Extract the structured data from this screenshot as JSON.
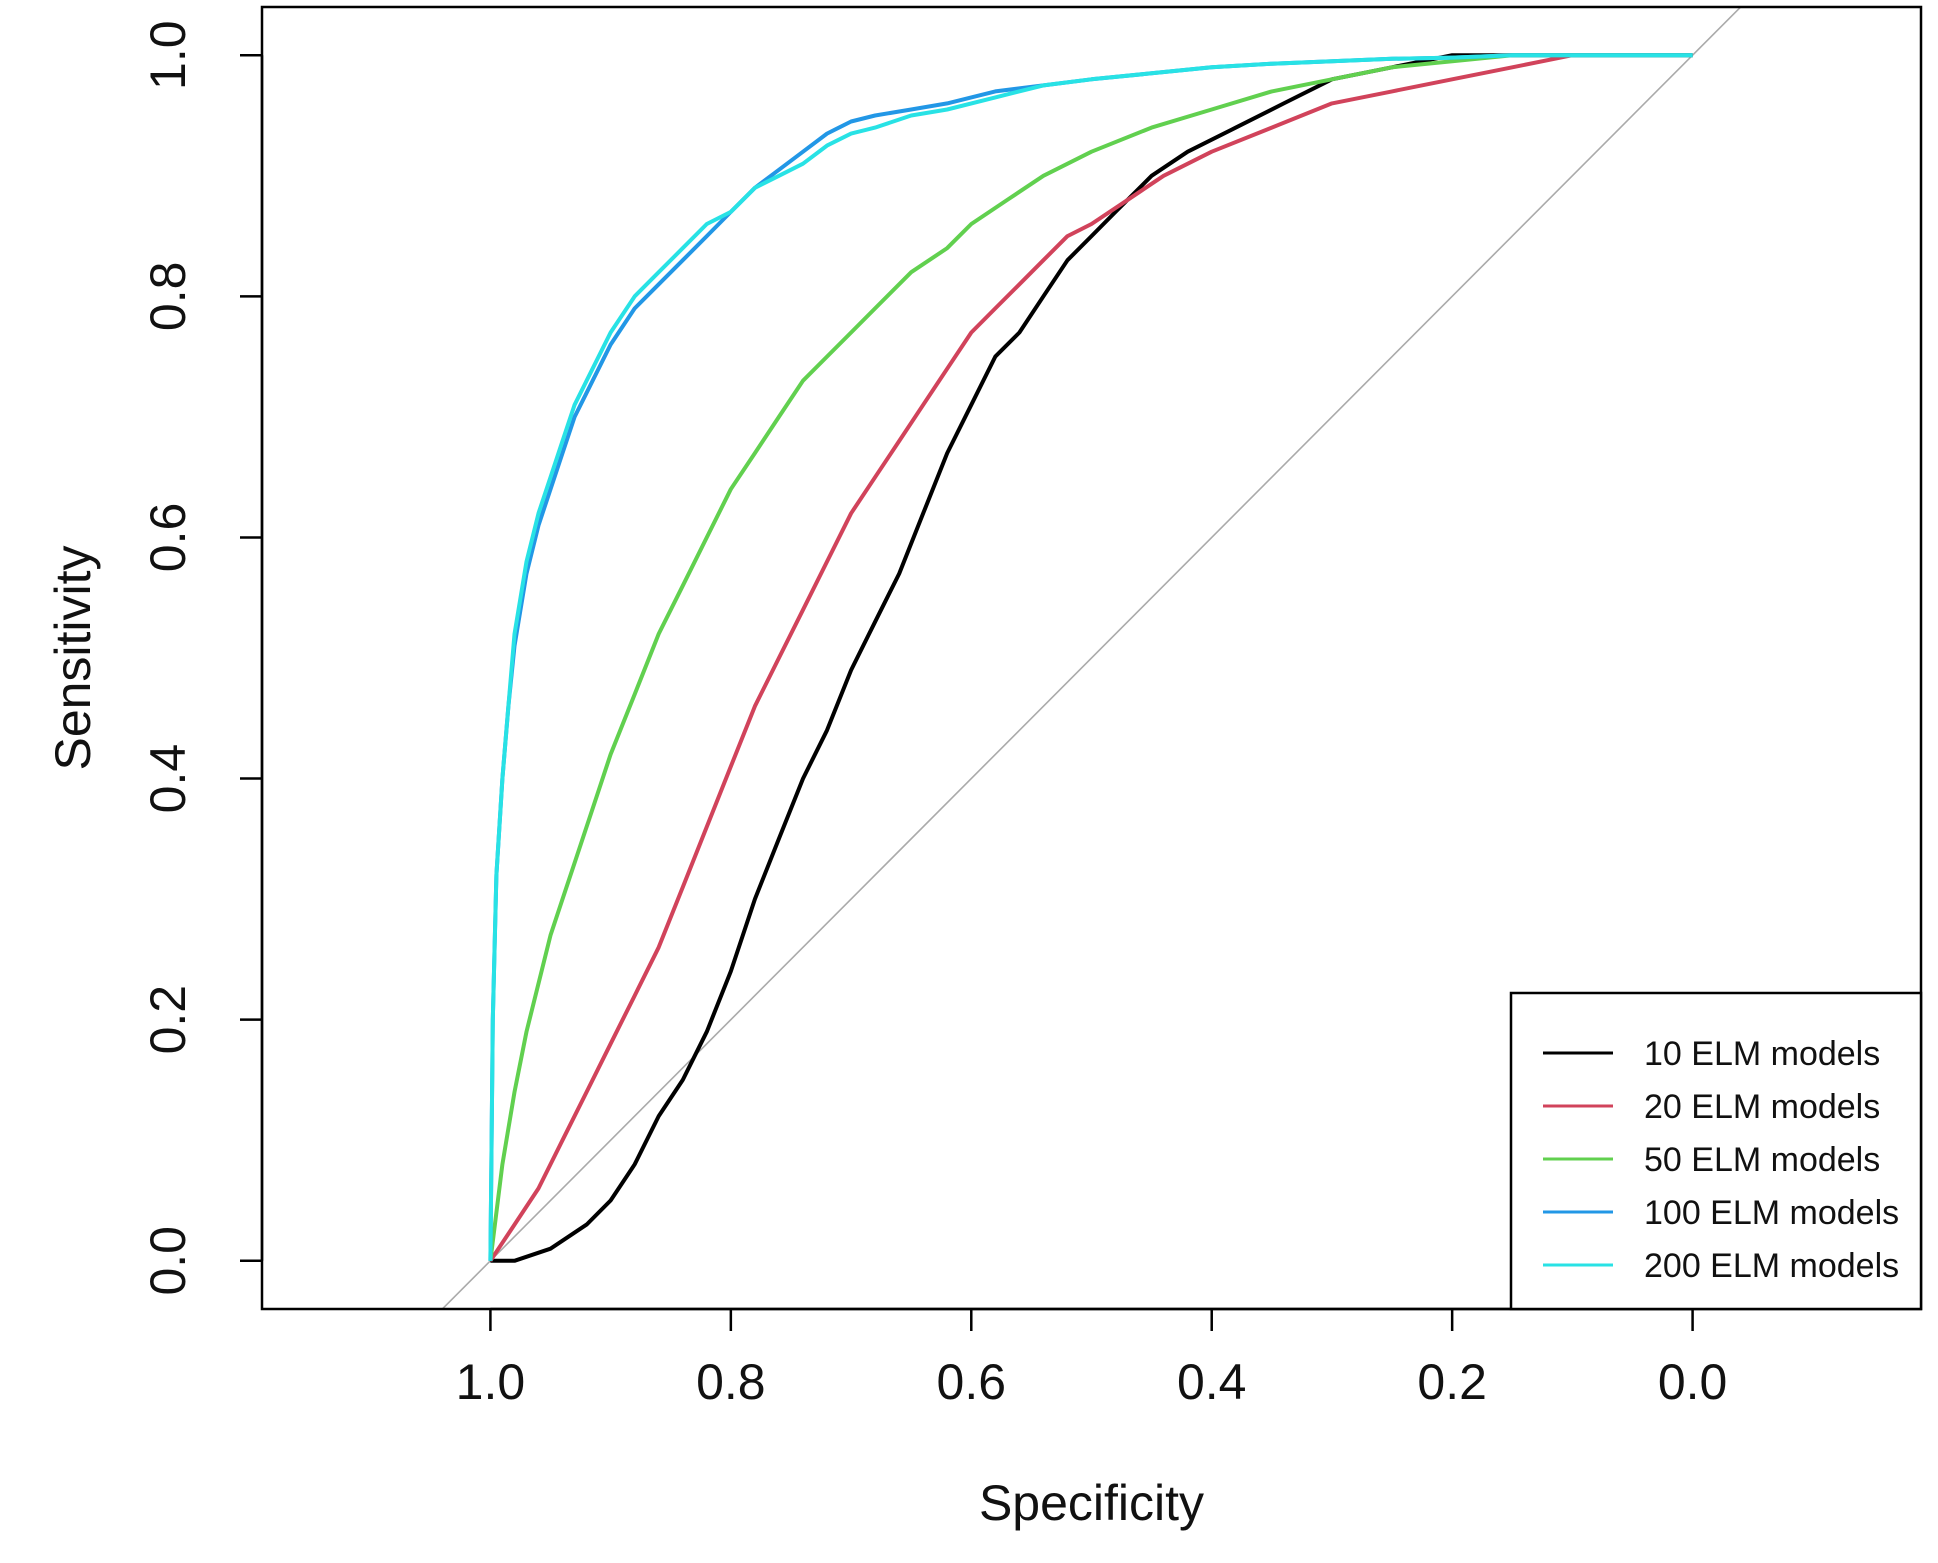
{
  "chart_data": {
    "type": "line",
    "title": "",
    "xlabel": "Specificity",
    "ylabel": "Sensitivity",
    "xlim": [
      1.19,
      -0.19
    ],
    "ylim": [
      -0.04,
      1.04
    ],
    "x_reversed": true,
    "x_ticks": [
      "1.0",
      "0.8",
      "0.6",
      "0.4",
      "0.2",
      "0.0"
    ],
    "y_ticks": [
      "0.0",
      "0.2",
      "0.4",
      "0.6",
      "0.8",
      "1.0"
    ],
    "grid": false,
    "legend_position": "bottom-right",
    "reference_line": {
      "from": [
        1.0,
        0.0
      ],
      "to": [
        0.0,
        1.0
      ],
      "color": "#aaaaaa"
    },
    "series": [
      {
        "name": "10 ELM models",
        "color": "#000000",
        "x": [
          1.0,
          0.98,
          0.95,
          0.92,
          0.9,
          0.88,
          0.86,
          0.84,
          0.82,
          0.8,
          0.78,
          0.76,
          0.74,
          0.72,
          0.7,
          0.68,
          0.66,
          0.64,
          0.62,
          0.6,
          0.58,
          0.56,
          0.54,
          0.52,
          0.5,
          0.48,
          0.45,
          0.42,
          0.38,
          0.34,
          0.3,
          0.25,
          0.2,
          0.15,
          0.1,
          0.05,
          0.0
        ],
        "y": [
          0.0,
          0.0,
          0.01,
          0.03,
          0.05,
          0.08,
          0.12,
          0.15,
          0.19,
          0.24,
          0.3,
          0.35,
          0.4,
          0.44,
          0.49,
          0.53,
          0.57,
          0.62,
          0.67,
          0.71,
          0.75,
          0.77,
          0.8,
          0.83,
          0.85,
          0.87,
          0.9,
          0.92,
          0.94,
          0.96,
          0.98,
          0.99,
          1.0,
          1.0,
          1.0,
          1.0,
          1.0
        ]
      },
      {
        "name": "20 ELM models",
        "color": "#d1435b",
        "x": [
          1.0,
          0.98,
          0.96,
          0.94,
          0.92,
          0.9,
          0.88,
          0.86,
          0.84,
          0.82,
          0.8,
          0.78,
          0.76,
          0.74,
          0.72,
          0.7,
          0.68,
          0.66,
          0.64,
          0.62,
          0.6,
          0.58,
          0.56,
          0.54,
          0.52,
          0.5,
          0.47,
          0.44,
          0.4,
          0.35,
          0.3,
          0.25,
          0.2,
          0.15,
          0.1,
          0.05,
          0.0
        ],
        "y": [
          0.0,
          0.03,
          0.06,
          0.1,
          0.14,
          0.18,
          0.22,
          0.26,
          0.31,
          0.36,
          0.41,
          0.46,
          0.5,
          0.54,
          0.58,
          0.62,
          0.65,
          0.68,
          0.71,
          0.74,
          0.77,
          0.79,
          0.81,
          0.83,
          0.85,
          0.86,
          0.88,
          0.9,
          0.92,
          0.94,
          0.96,
          0.97,
          0.98,
          0.99,
          1.0,
          1.0,
          1.0
        ]
      },
      {
        "name": "50 ELM models",
        "color": "#61d04f",
        "x": [
          1.0,
          0.99,
          0.98,
          0.97,
          0.96,
          0.95,
          0.94,
          0.93,
          0.92,
          0.91,
          0.9,
          0.88,
          0.86,
          0.84,
          0.82,
          0.8,
          0.78,
          0.76,
          0.74,
          0.72,
          0.7,
          0.68,
          0.65,
          0.62,
          0.6,
          0.57,
          0.54,
          0.5,
          0.45,
          0.4,
          0.35,
          0.3,
          0.25,
          0.2,
          0.15,
          0.1,
          0.05,
          0.0
        ],
        "y": [
          0.0,
          0.08,
          0.14,
          0.19,
          0.23,
          0.27,
          0.3,
          0.33,
          0.36,
          0.39,
          0.42,
          0.47,
          0.52,
          0.56,
          0.6,
          0.64,
          0.67,
          0.7,
          0.73,
          0.75,
          0.77,
          0.79,
          0.82,
          0.84,
          0.86,
          0.88,
          0.9,
          0.92,
          0.94,
          0.955,
          0.97,
          0.98,
          0.99,
          0.995,
          1.0,
          1.0,
          1.0,
          1.0
        ]
      },
      {
        "name": "100 ELM models",
        "color": "#2297e6",
        "x": [
          1.0,
          0.998,
          0.995,
          0.99,
          0.985,
          0.98,
          0.97,
          0.96,
          0.95,
          0.94,
          0.93,
          0.92,
          0.9,
          0.88,
          0.86,
          0.84,
          0.82,
          0.8,
          0.78,
          0.76,
          0.74,
          0.72,
          0.7,
          0.68,
          0.65,
          0.62,
          0.58,
          0.54,
          0.5,
          0.45,
          0.4,
          0.35,
          0.3,
          0.25,
          0.2,
          0.15,
          0.1,
          0.05,
          0.0
        ],
        "y": [
          0.0,
          0.2,
          0.32,
          0.4,
          0.46,
          0.51,
          0.57,
          0.61,
          0.64,
          0.67,
          0.7,
          0.72,
          0.76,
          0.79,
          0.81,
          0.83,
          0.85,
          0.87,
          0.89,
          0.905,
          0.92,
          0.935,
          0.945,
          0.95,
          0.955,
          0.96,
          0.97,
          0.975,
          0.98,
          0.985,
          0.99,
          0.993,
          0.995,
          0.997,
          0.998,
          1.0,
          1.0,
          1.0,
          1.0
        ]
      },
      {
        "name": "200 ELM models",
        "color": "#28e2e5",
        "x": [
          1.0,
          0.998,
          0.995,
          0.99,
          0.985,
          0.98,
          0.97,
          0.96,
          0.95,
          0.94,
          0.93,
          0.92,
          0.9,
          0.88,
          0.86,
          0.84,
          0.82,
          0.8,
          0.78,
          0.76,
          0.74,
          0.72,
          0.7,
          0.68,
          0.65,
          0.62,
          0.58,
          0.54,
          0.5,
          0.45,
          0.4,
          0.35,
          0.3,
          0.25,
          0.2,
          0.15,
          0.1,
          0.05,
          0.0
        ],
        "y": [
          0.0,
          0.2,
          0.32,
          0.4,
          0.46,
          0.52,
          0.58,
          0.62,
          0.65,
          0.68,
          0.71,
          0.73,
          0.77,
          0.8,
          0.82,
          0.84,
          0.86,
          0.87,
          0.89,
          0.9,
          0.91,
          0.925,
          0.935,
          0.94,
          0.95,
          0.955,
          0.965,
          0.975,
          0.98,
          0.985,
          0.99,
          0.993,
          0.995,
          0.997,
          0.998,
          1.0,
          1.0,
          1.0,
          1.0
        ]
      }
    ]
  }
}
